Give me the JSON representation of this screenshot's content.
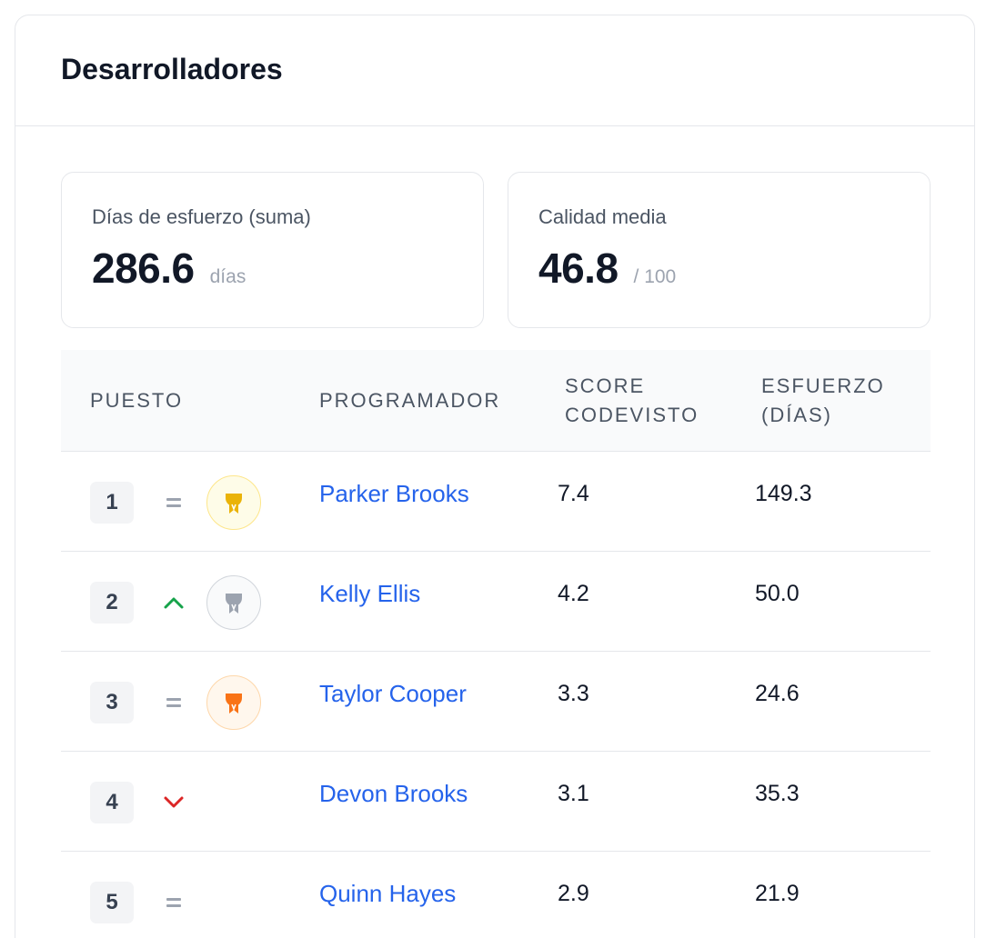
{
  "card": {
    "title": "Desarrolladores"
  },
  "stats": [
    {
      "label": "Días de esfuerzo (suma)",
      "value": "286.6",
      "unit": "días"
    },
    {
      "label": "Calidad media",
      "value": "46.8",
      "unit": "/ 100"
    }
  ],
  "table": {
    "headers": {
      "rank": "PUESTO",
      "developer": "PROGRAMADOR",
      "score": "SCORE CODEVISTO",
      "effort": "ESFUERZO (DÍAS)"
    },
    "rows": [
      {
        "rank": "1",
        "trend": "same",
        "trophy": "gold",
        "name": "Parker Brooks",
        "score": "7.4",
        "effort": "149.3"
      },
      {
        "rank": "2",
        "trend": "up",
        "trophy": "silver",
        "name": "Kelly Ellis",
        "score": "4.2",
        "effort": "50.0"
      },
      {
        "rank": "3",
        "trend": "same",
        "trophy": "bronze",
        "name": "Taylor Cooper",
        "score": "3.3",
        "effort": "24.6"
      },
      {
        "rank": "4",
        "trend": "down",
        "trophy": "none",
        "name": "Devon Brooks",
        "score": "3.1",
        "effort": "35.3"
      },
      {
        "rank": "5",
        "trend": "same",
        "trophy": "none",
        "name": "Quinn Hayes",
        "score": "2.9",
        "effort": "21.9"
      }
    ]
  },
  "colors": {
    "link": "#2563eb",
    "trend_up": "#16a34a",
    "trend_down": "#dc2626",
    "trend_same": "#9ca3af",
    "gold": "#eab308",
    "silver": "#9ca3af",
    "bronze": "#f97316"
  }
}
